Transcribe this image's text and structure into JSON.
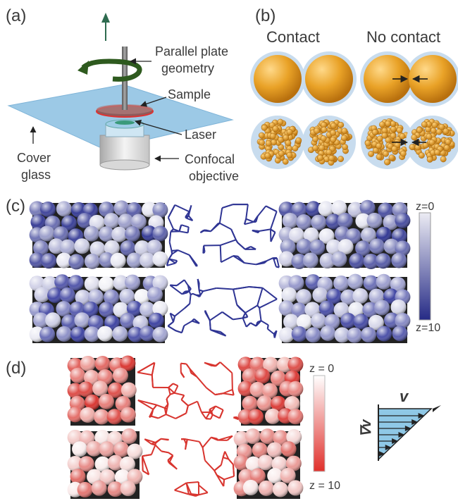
{
  "panels": {
    "a": {
      "letter": "(a)",
      "labels": {
        "parallel_plate_line1": "Parallel plate",
        "parallel_plate_line2": "geometry",
        "sample": "Sample",
        "laser": "Laser",
        "cover_line1": "Cover",
        "cover_line2": "glass",
        "confocal_line1": "Confocal",
        "confocal_line2": "objective"
      }
    },
    "b": {
      "letter": "(b)",
      "contact": "Contact",
      "no_contact": "No contact"
    },
    "c": {
      "letter": "(c)",
      "scale_top": "z=0",
      "scale_bottom": "z=10"
    },
    "d": {
      "letter": "(d)",
      "scale_top": "z = 0",
      "scale_bottom": "z = 10",
      "velocity_symbol": "v",
      "gradient_symbol": "∇v"
    }
  },
  "colors": {
    "blue_dark": "#2a2f8a",
    "blue_light": "#e8e8f2",
    "red_dark": "#e0332e",
    "red_light": "#fbeaea",
    "orange": "#e9a227",
    "halo": "#b9d3ea",
    "glass": "#8fc3e3",
    "shear_fill": "#8fc8e6"
  }
}
